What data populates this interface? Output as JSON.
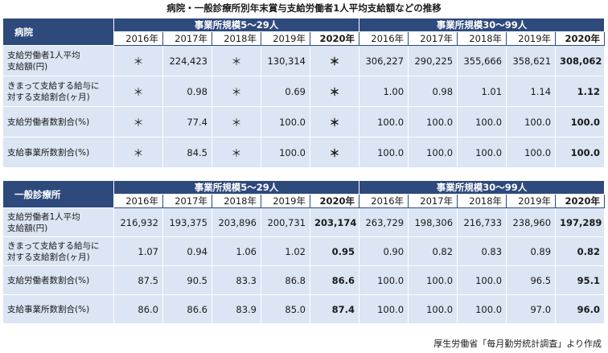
{
  "title": "病院・一般診療所別年末賞与支給労働者1人平均支給額などの推移",
  "source": "厚生労働省「毎月勤労統計調査」より作成",
  "tables": [
    {
      "id": "t1",
      "category": "病院",
      "groups": [
        "事業所規模5〜29人",
        "事業所規模30〜99人"
      ],
      "years": [
        "2016年",
        "2017年",
        "2018年",
        "2019年",
        "2020年"
      ],
      "row_height": 38,
      "rows": [
        {
          "label": "支給労働者1人平均\n支給額(円)",
          "values": [
            "＊",
            "224,423",
            "＊",
            "130,314",
            "＊",
            "306,227",
            "290,225",
            "355,666",
            "358,621",
            "308,062"
          ]
        },
        {
          "label": "きまって支給する給与に\n対する支給割合(ヶ月)",
          "values": [
            "＊",
            "0.98",
            "＊",
            "0.69",
            "＊",
            "1.00",
            "0.98",
            "1.01",
            "1.14",
            "1.12"
          ]
        },
        {
          "label": "支給労働者数割合(%)",
          "values": [
            "＊",
            "77.4",
            "＊",
            "100.0",
            "＊",
            "100.0",
            "100.0",
            "100.0",
            "100.0",
            "100.0"
          ]
        },
        {
          "label": "支給事業所数割合(%)",
          "values": [
            "＊",
            "84.5",
            "＊",
            "100.0",
            "＊",
            "100.0",
            "100.0",
            "100.0",
            "100.0",
            "100.0"
          ]
        }
      ]
    },
    {
      "id": "t2",
      "category": "一般診療所",
      "groups": [
        "事業所規模5〜29人",
        "事業所規模30〜99人"
      ],
      "years": [
        "2016年",
        "2017年",
        "2018年",
        "2019年",
        "2020年"
      ],
      "row_height": 36,
      "rows": [
        {
          "label": "支給労働者1人平均\n支給額(円)",
          "values": [
            "216,932",
            "193,375",
            "203,896",
            "200,731",
            "203,174",
            "263,729",
            "198,306",
            "216,733",
            "238,960",
            "197,289"
          ]
        },
        {
          "label": "きまって支給する給与に\n対する支給割合(ヶ月)",
          "values": [
            "1.07",
            "0.94",
            "1.06",
            "1.02",
            "0.95",
            "0.90",
            "0.82",
            "0.83",
            "0.89",
            "0.82"
          ]
        },
        {
          "label": "支給労働者数割合(%)",
          "values": [
            "87.5",
            "90.5",
            "83.3",
            "86.8",
            "86.6",
            "100.0",
            "100.0",
            "100.0",
            "96.5",
            "95.1"
          ]
        },
        {
          "label": "支給事業所数割合(%)",
          "values": [
            "86.0",
            "86.6",
            "83.9",
            "85.0",
            "87.4",
            "100.0",
            "100.0",
            "100.0",
            "97.0",
            "96.0"
          ]
        }
      ]
    }
  ]
}
